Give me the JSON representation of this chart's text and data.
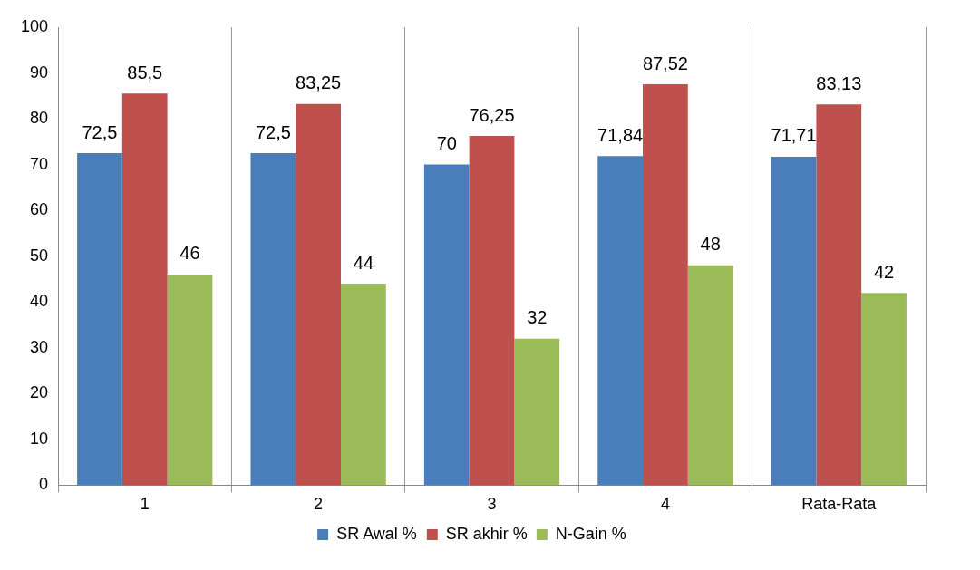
{
  "chart_data": {
    "type": "bar",
    "categories": [
      "1",
      "2",
      "3",
      "4",
      "Rata-Rata"
    ],
    "series": [
      {
        "name": "SR Awal %",
        "color": "#4a7ebb",
        "values": [
          72.5,
          72.5,
          70,
          71.84,
          71.71
        ],
        "value_labels": [
          "72,5",
          "72,5",
          "70",
          "71,84",
          "71,71"
        ]
      },
      {
        "name": "SR akhir %",
        "color": "#c0504d",
        "values": [
          85.5,
          83.25,
          76.25,
          87.52,
          83.13
        ],
        "value_labels": [
          "85,5",
          "83,25",
          "76,25",
          "87,52",
          "83,13"
        ]
      },
      {
        "name": "N-Gain %",
        "color": "#9bbb59",
        "values": [
          46,
          44,
          32,
          48,
          42
        ],
        "value_labels": [
          "46",
          "44",
          "32",
          "48",
          "42"
        ]
      }
    ],
    "ylim": [
      0,
      100
    ],
    "yticks": [
      0,
      10,
      20,
      30,
      40,
      50,
      60,
      70,
      80,
      90,
      100
    ],
    "grid": "x",
    "legend": "bottom"
  }
}
